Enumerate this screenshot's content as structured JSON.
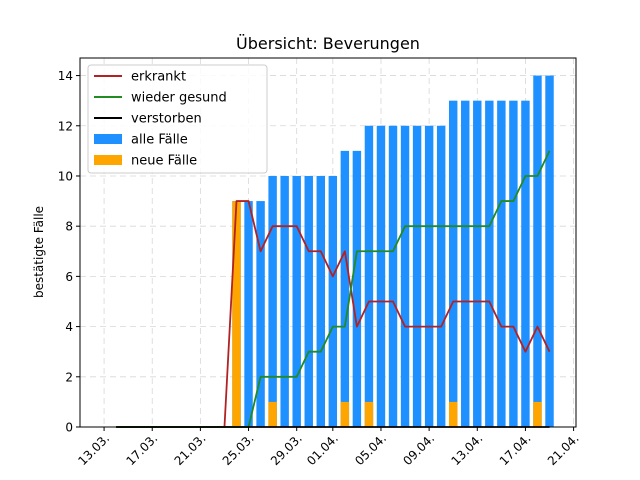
{
  "chart_data": {
    "type": "bar",
    "title": "Übersicht: Beverungen",
    "xlabel": "",
    "ylabel": "bestätigte Fälle",
    "ylim": [
      0,
      14.7
    ],
    "grid": true,
    "legend_placement": "top-left",
    "x_ticks": [
      {
        "date": "2020-03-13",
        "label": "13.03."
      },
      {
        "date": "2020-03-17",
        "label": "17.03."
      },
      {
        "date": "2020-03-21",
        "label": "21.03."
      },
      {
        "date": "2020-03-25",
        "label": "25.03."
      },
      {
        "date": "2020-03-29",
        "label": "29.03."
      },
      {
        "date": "2020-04-01",
        "label": "01.04."
      },
      {
        "date": "2020-04-05",
        "label": "05.04."
      },
      {
        "date": "2020-04-09",
        "label": "09.04."
      },
      {
        "date": "2020-04-13",
        "label": "13.04."
      },
      {
        "date": "2020-04-17",
        "label": "17.04."
      },
      {
        "date": "2020-04-21",
        "label": "21.04."
      }
    ],
    "y_ticks": [
      0,
      2,
      4,
      6,
      8,
      10,
      12,
      14
    ],
    "x": [
      "2020-03-14",
      "2020-03-15",
      "2020-03-16",
      "2020-03-17",
      "2020-03-18",
      "2020-03-19",
      "2020-03-20",
      "2020-03-21",
      "2020-03-22",
      "2020-03-23",
      "2020-03-24",
      "2020-03-25",
      "2020-03-26",
      "2020-03-27",
      "2020-03-28",
      "2020-03-29",
      "2020-03-30",
      "2020-03-31",
      "2020-04-01",
      "2020-04-02",
      "2020-04-03",
      "2020-04-04",
      "2020-04-05",
      "2020-04-06",
      "2020-04-07",
      "2020-04-08",
      "2020-04-09",
      "2020-04-10",
      "2020-04-11",
      "2020-04-12",
      "2020-04-13",
      "2020-04-14",
      "2020-04-15",
      "2020-04-16",
      "2020-04-17",
      "2020-04-18",
      "2020-04-19"
    ],
    "series": [
      {
        "name": "erkrankt",
        "kind": "line",
        "color": "#b22222",
        "values": [
          0,
          0,
          0,
          0,
          0,
          0,
          0,
          0,
          0,
          0,
          9,
          9,
          7,
          8,
          8,
          8,
          7,
          7,
          6,
          7,
          4,
          5,
          5,
          5,
          4,
          4,
          4,
          4,
          5,
          5,
          5,
          5,
          4,
          4,
          3,
          4,
          3
        ]
      },
      {
        "name": "wieder gesund",
        "kind": "line",
        "color": "#228b22",
        "values": [
          0,
          0,
          0,
          0,
          0,
          0,
          0,
          0,
          0,
          0,
          0,
          0,
          2,
          2,
          2,
          2,
          3,
          3,
          4,
          4,
          7,
          7,
          7,
          7,
          8,
          8,
          8,
          8,
          8,
          8,
          8,
          8,
          9,
          9,
          10,
          10,
          11
        ]
      },
      {
        "name": "verstorben",
        "kind": "line",
        "color": "#000000",
        "values": [
          0,
          0,
          0,
          0,
          0,
          0,
          0,
          0,
          0,
          0,
          0,
          0,
          0,
          0,
          0,
          0,
          0,
          0,
          0,
          0,
          0,
          0,
          0,
          0,
          0,
          0,
          0,
          0,
          0,
          0,
          0,
          0,
          0,
          0,
          0,
          0,
          0
        ]
      },
      {
        "name": "alle Fälle",
        "kind": "bar",
        "color": "#1e90ff",
        "values": [
          0,
          0,
          0,
          0,
          0,
          0,
          0,
          0,
          0,
          0,
          9,
          9,
          9,
          10,
          10,
          10,
          10,
          10,
          10,
          11,
          11,
          12,
          12,
          12,
          12,
          12,
          12,
          12,
          13,
          13,
          13,
          13,
          13,
          13,
          13,
          14,
          14
        ]
      },
      {
        "name": "neue Fälle",
        "kind": "bar",
        "color": "#ffa500",
        "values": [
          0,
          0,
          0,
          0,
          0,
          0,
          0,
          0,
          0,
          0,
          9,
          0,
          0,
          1,
          0,
          0,
          0,
          0,
          0,
          1,
          0,
          1,
          0,
          0,
          0,
          0,
          0,
          0,
          1,
          0,
          0,
          0,
          0,
          0,
          0,
          1,
          0
        ]
      }
    ]
  }
}
